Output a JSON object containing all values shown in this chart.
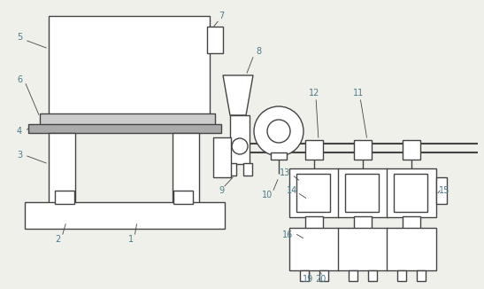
{
  "background_color": "#f0f0eb",
  "line_color": "#444444",
  "line_width": 1.0,
  "label_color": "#4a7a8a",
  "label_fontsize": 7.0,
  "figure_width": 5.47,
  "figure_height": 3.26
}
